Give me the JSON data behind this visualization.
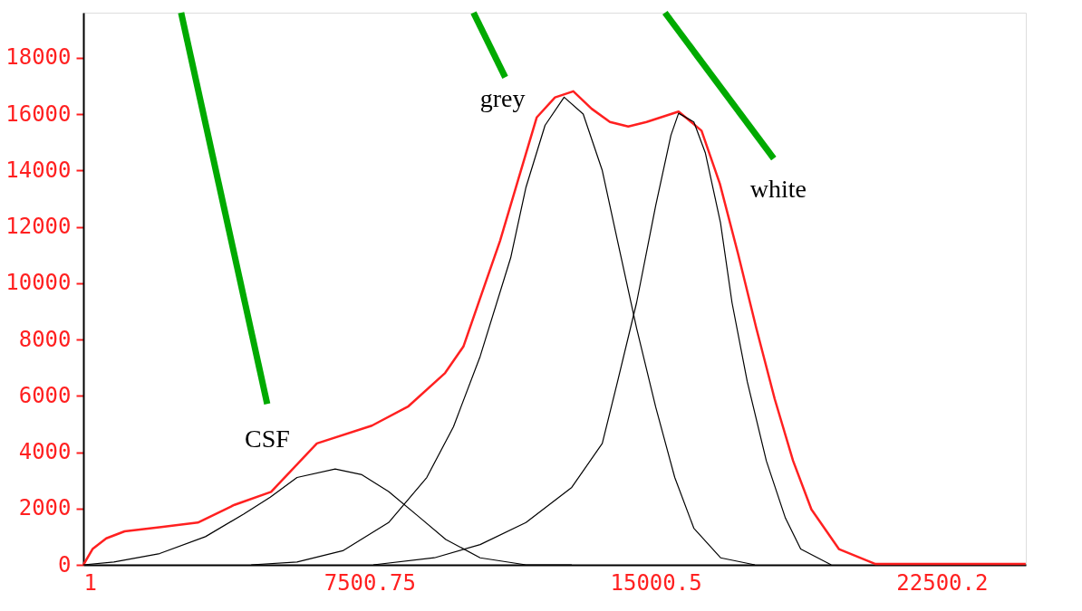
{
  "chart_data": {
    "type": "line",
    "xlim": [
      1,
      24700
    ],
    "ylim": [
      0,
      19600
    ],
    "xticks": [
      1,
      7500.75,
      15000.5,
      22500.2
    ],
    "yticks": [
      0,
      2000,
      4000,
      6000,
      8000,
      10000,
      12000,
      14000,
      16000,
      18000
    ],
    "grid": false,
    "marker": "none",
    "line_style": "solid",
    "series": [
      {
        "color": "#ff2020",
        "x": [
          1,
          241,
          601,
          1081,
          2041,
          3001,
          3961,
          4921,
          6121,
          7561,
          8521,
          9481,
          9961,
          10441,
          10921,
          11401,
          11881,
          12361,
          12841,
          13321,
          13801,
          14281,
          14761,
          15601,
          16201,
          16681,
          17161,
          17641,
          18121,
          18601,
          19081,
          19801,
          20761,
          24697
        ],
        "values": [
          0,
          560,
          940,
          1190,
          1340,
          1500,
          2130,
          2590,
          4310,
          4940,
          5630,
          6810,
          7750,
          9630,
          11500,
          13690,
          15880,
          16590,
          16810,
          16190,
          15720,
          15560,
          15720,
          16090,
          15410,
          13530,
          11030,
          8380,
          5880,
          3690,
          1970,
          560,
          30,
          30
        ]
      },
      {
        "name": "CSF",
        "color": "#000000",
        "x": [
          1,
          800,
          2000,
          3200,
          4200,
          4900,
          5600,
          6600,
          7300,
          8000,
          8800,
          9500,
          10400,
          11600,
          12800
        ],
        "values": [
          0,
          100,
          400,
          1000,
          1800,
          2400,
          3100,
          3400,
          3200,
          2600,
          1700,
          900,
          250,
          0,
          0
        ]
      },
      {
        "name": "grey",
        "color": "#000000",
        "x": [
          4400,
          5600,
          6800,
          8000,
          9000,
          9700,
          10400,
          11200,
          11600,
          12100,
          12600,
          13100,
          13600,
          14000,
          14500,
          15000,
          15500,
          16000,
          16700,
          17600
        ],
        "values": [
          0,
          100,
          500,
          1500,
          3100,
          4900,
          7400,
          10900,
          13400,
          15600,
          16600,
          16000,
          14000,
          11500,
          8400,
          5600,
          3100,
          1300,
          250,
          0
        ]
      },
      {
        "name": "white",
        "color": "#000000",
        "x": [
          7600,
          9200,
          10400,
          11600,
          12800,
          13600,
          14000,
          14500,
          15000,
          15400,
          15600,
          16000,
          16300,
          16700,
          17000,
          17400,
          17900,
          18400,
          18800,
          19600
        ],
        "values": [
          0,
          250,
          720,
          1500,
          2750,
          4310,
          6500,
          9310,
          12750,
          15250,
          16030,
          15720,
          14630,
          12130,
          9310,
          6500,
          3690,
          1660,
          560,
          0
        ]
      }
    ]
  }
}
